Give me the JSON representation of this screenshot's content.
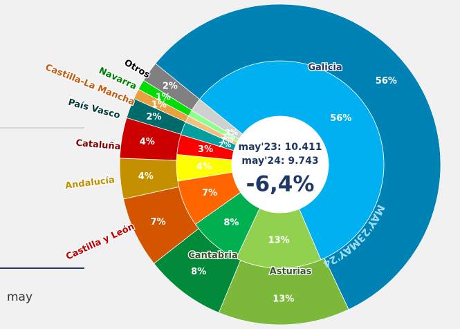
{
  "chart_data": {
    "type": "sunburst",
    "categories": [
      "Galicia",
      "Asturias",
      "Cantabria",
      "Castilla y León",
      "Andalucía",
      "Cataluña",
      "País Vasco",
      "Castilla-La Mancha",
      "Navarra",
      "Otros"
    ],
    "series": [
      {
        "name": "MAY'23",
        "colors": [
          "#00b0f0",
          "#92d050",
          "#00b050",
          "#ff6600",
          "#ffff00",
          "#ff0000",
          "#00a0a0",
          "#f4c080",
          "#90ff90",
          "#d0d0d0"
        ],
        "values": [
          56,
          13,
          8,
          7,
          4,
          3,
          2,
          1,
          1,
          2
        ],
        "value_labels": [
          "56%",
          "13%",
          "8%",
          "7%",
          "4%",
          "3%",
          "2%",
          "1%",
          "1%",
          "2%"
        ]
      },
      {
        "name": "MAY'24",
        "colors": [
          "#0082b4",
          "#7cb83a",
          "#008a3a",
          "#d45500",
          "#c49000",
          "#cc0000",
          "#006b6b",
          "#e8a040",
          "#00dd00",
          "#808080"
        ],
        "values": [
          56,
          13,
          8,
          7,
          4,
          4,
          2,
          1,
          1,
          2
        ],
        "value_labels": [
          "56%",
          "13%",
          "8%",
          "7%",
          "4%",
          "4%",
          "2%",
          "1%",
          "1%",
          "2%"
        ]
      }
    ],
    "label_colors": [
      "#1f3864",
      "#375623",
      "#375623",
      "#c00000",
      "#bf8f00",
      "#7f0000",
      "#003838",
      "#c55a11",
      "#008000",
      "#000000"
    ],
    "annotations": [
      "may'23: 10.411",
      "may'24: 9.743",
      "-6,4%"
    ],
    "side_text": "may"
  }
}
